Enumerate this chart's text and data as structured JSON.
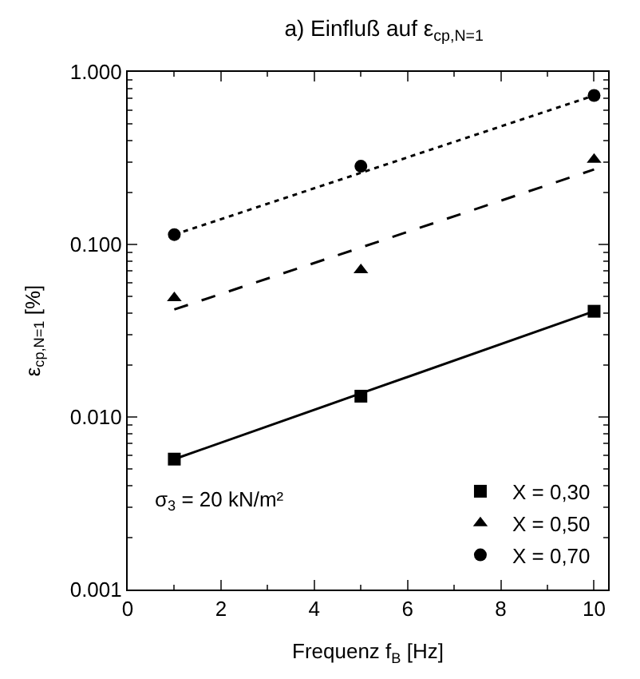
{
  "chart_data": {
    "type": "scatter",
    "title": "a) Einfluß auf ε$_{cp,N=1}$",
    "xlabel": "Frequenz f$_{B}$ [Hz]",
    "ylabel": "ε$_{cp,N=1}$ [%]",
    "log": "y",
    "legend": "bottom right",
    "xlim": [
      0,
      10.3
    ],
    "xticks": [
      0,
      2,
      4,
      6,
      8,
      10
    ],
    "ylim": [
      0.001,
      1
    ],
    "yticks": [
      {
        "value": 0.001,
        "label": "0.001"
      },
      {
        "value": 0.01,
        "label": "0.010"
      },
      {
        "value": 0.1,
        "label": "0.100"
      },
      {
        "value": 1,
        "label": "1.000"
      }
    ],
    "x": [
      1,
      5,
      10
    ],
    "series": [
      {
        "name": "X = 0,30",
        "color": "#000000",
        "marker": "square",
        "values": [
          0.0057,
          0.0132,
          0.041
        ]
      },
      {
        "name": "X = 0,50",
        "color": "#000000",
        "marker": "triangle",
        "values": [
          0.049,
          0.071,
          0.31
        ]
      },
      {
        "name": "X = 0,70",
        "color": "#000000",
        "marker": "circle",
        "values": [
          0.114,
          0.284,
          0.73
        ]
      },
      {
        "type": "line",
        "color": "#000000",
        "line_style": "solid",
        "marker": "none",
        "values": [
          0.0057,
          0.0137,
          0.041
        ]
      },
      {
        "type": "line",
        "color": "#000000",
        "line_style": "dashed",
        "marker": "none",
        "values": [
          0.042,
          0.096,
          0.272
        ]
      },
      {
        "type": "line",
        "color": "#000000",
        "line_style": "dotted",
        "marker": "none",
        "values": [
          0.114,
          0.26,
          0.73
        ]
      }
    ],
    "annotations": [
      "σ$_{3}$ = 20 kN/m²"
    ]
  }
}
